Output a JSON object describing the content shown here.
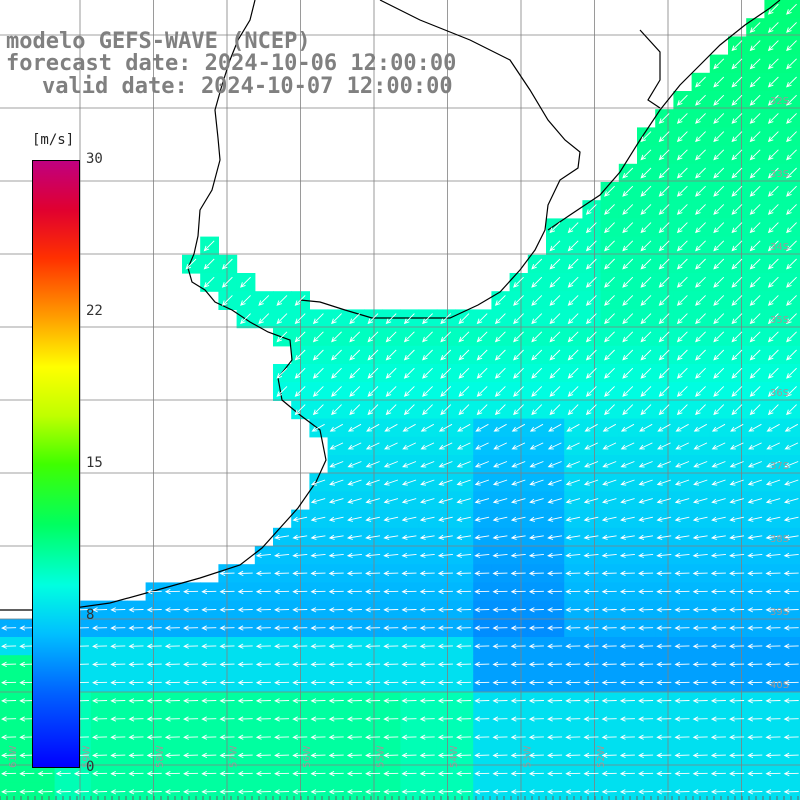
{
  "header": {
    "model": "modelo GEFS-WAVE (NCEP)",
    "forecast": "forecast date: 2024-10-06 12:00:00",
    "valid": "valid date: 2024-10-07 12:00:00"
  },
  "colorbar": {
    "unit": "[m/s]",
    "ticks": [
      {
        "label": "30",
        "value": 30
      },
      {
        "label": "22",
        "value": 22
      },
      {
        "label": "15",
        "value": 15
      },
      {
        "label": "8",
        "value": 8
      },
      {
        "label": "0",
        "value": 0
      }
    ],
    "min": 0,
    "max": 30
  },
  "grid": {
    "lat_labels": [
      "32S",
      "33S",
      "34S",
      "35S",
      "36S",
      "37S",
      "38S",
      "39S",
      "40S"
    ],
    "lon_labels": [
      "61W",
      "59W",
      "58W",
      "57W",
      "56W",
      "55W",
      "54W",
      "53W",
      "52W"
    ]
  },
  "colors": {
    "land": "#ffffff",
    "coast": "#000000",
    "grid": "#808080",
    "title": "#808080",
    "arrow": "#ffffff"
  }
}
